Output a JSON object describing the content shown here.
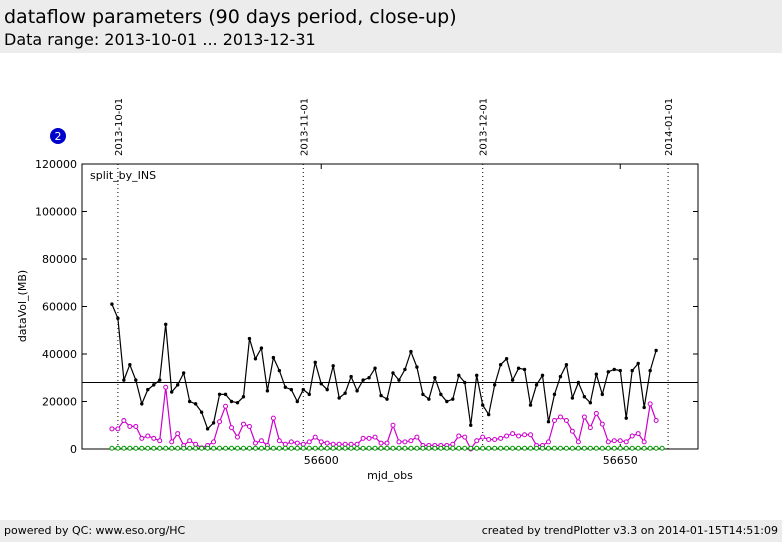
{
  "header": {
    "title": "dataflow parameters (90 days period, close-up)",
    "subtitle": "Data range: 2013-10-01 ... 2013-12-31"
  },
  "footer": {
    "left": "powered by QC: www.eso.org/HC",
    "right": "created by trendPlotter v3.3 on 2014-01-15T14:51:09"
  },
  "badge": {
    "label": "2",
    "color": "#0000cc"
  },
  "chart_data": {
    "type": "line",
    "annotation": "split_by_INS",
    "xlabel": "mjd_obs",
    "ylabel": "dataVol_(MB)",
    "xlim": [
      56560,
      56663
    ],
    "ylim": [
      0,
      120000
    ],
    "xticks": [
      56600,
      56650
    ],
    "yticks": [
      0,
      20000,
      40000,
      60000,
      80000,
      100000,
      120000
    ],
    "date_markers": [
      {
        "label": "2013-10-01",
        "mjd": 56566
      },
      {
        "label": "2013-11-01",
        "mjd": 56597
      },
      {
        "label": "2013-12-01",
        "mjd": 56627
      },
      {
        "label": "2014-01-01",
        "mjd": 56658
      }
    ],
    "reference_line": {
      "y": 28000,
      "color": "#000000"
    },
    "series": [
      {
        "color": "#000000",
        "marker": "dot",
        "x": [
          56565,
          56566,
          56567,
          56568,
          56569,
          56570,
          56571,
          56572,
          56573,
          56574,
          56575,
          56576,
          56577,
          56578,
          56579,
          56580,
          56581,
          56582,
          56583,
          56584,
          56585,
          56586,
          56587,
          56588,
          56589,
          56590,
          56591,
          56592,
          56593,
          56594,
          56595,
          56596,
          56597,
          56598,
          56599,
          56600,
          56601,
          56602,
          56603,
          56604,
          56605,
          56606,
          56607,
          56608,
          56609,
          56610,
          56611,
          56612,
          56613,
          56614,
          56615,
          56616,
          56617,
          56618,
          56619,
          56620,
          56621,
          56622,
          56623,
          56624,
          56625,
          56626,
          56627,
          56628,
          56629,
          56630,
          56631,
          56632,
          56633,
          56634,
          56635,
          56636,
          56637,
          56638,
          56639,
          56640,
          56641,
          56642,
          56643,
          56644,
          56645,
          56646,
          56647,
          56648,
          56649,
          56650,
          56651,
          56652,
          56653,
          56654,
          56655,
          56656,
          56657
        ],
        "values": [
          61000,
          55000,
          29000,
          35500,
          29000,
          19000,
          25000,
          27000,
          29000,
          52500,
          24000,
          27000,
          32000,
          20000,
          19000,
          15500,
          8500,
          11000,
          23000,
          23000,
          20000,
          19500,
          22000,
          46500,
          38000,
          42500,
          24500,
          38500,
          33000,
          26000,
          25000,
          20000,
          25000,
          23000,
          36500,
          27500,
          25000,
          35000,
          21500,
          23500,
          30500,
          24500,
          29000,
          30000,
          34000,
          22500,
          21000,
          32000,
          29000,
          33500,
          41000,
          34500,
          23000,
          21000,
          30000,
          23000,
          20000,
          21000,
          31000,
          28000,
          10000,
          31000,
          18500,
          14500,
          27000,
          35500,
          38000,
          29000,
          34000,
          33500,
          18500,
          27000,
          31000,
          11500,
          23000,
          30500,
          35500,
          21500,
          28000,
          22000,
          19500,
          31500,
          23000,
          32500,
          33500,
          33000,
          13000,
          33000,
          36000,
          17500,
          33000,
          41500,
          null
        ]
      },
      {
        "color": "#cc00cc",
        "marker": "open-circle",
        "x": [
          56565,
          56566,
          56567,
          56568,
          56569,
          56570,
          56571,
          56572,
          56573,
          56574,
          56575,
          56576,
          56577,
          56578,
          56579,
          56580,
          56581,
          56582,
          56583,
          56584,
          56585,
          56586,
          56587,
          56588,
          56589,
          56590,
          56591,
          56592,
          56593,
          56594,
          56595,
          56596,
          56597,
          56598,
          56599,
          56600,
          56601,
          56602,
          56603,
          56604,
          56605,
          56606,
          56607,
          56608,
          56609,
          56610,
          56611,
          56612,
          56613,
          56614,
          56615,
          56616,
          56617,
          56618,
          56619,
          56620,
          56621,
          56622,
          56623,
          56624,
          56625,
          56626,
          56627,
          56628,
          56629,
          56630,
          56631,
          56632,
          56633,
          56634,
          56635,
          56636,
          56637,
          56638,
          56639,
          56640,
          56641,
          56642,
          56643,
          56644,
          56645,
          56646,
          56647,
          56648,
          56649,
          56650,
          56651,
          56652,
          56653,
          56654,
          56655,
          56656,
          56657
        ],
        "values": [
          8500,
          8500,
          12000,
          9500,
          9500,
          4500,
          5500,
          4500,
          3500,
          26000,
          3000,
          6500,
          1500,
          3500,
          2000,
          500,
          1500,
          3000,
          11500,
          18000,
          9000,
          5000,
          10500,
          9500,
          2500,
          3500,
          1500,
          13000,
          3500,
          2000,
          3000,
          2500,
          2000,
          3000,
          5000,
          3000,
          2500,
          2000,
          2000,
          2000,
          2000,
          2000,
          4500,
          4500,
          5000,
          2500,
          2500,
          10000,
          3000,
          3000,
          3500,
          5000,
          1500,
          1500,
          1500,
          1500,
          1500,
          2000,
          5500,
          5000,
          0,
          3500,
          5000,
          4000,
          4000,
          4500,
          5500,
          6500,
          5500,
          6000,
          6000,
          1500,
          1500,
          3000,
          12000,
          13500,
          12000,
          7500,
          3000,
          13500,
          9000,
          15000,
          10500,
          3000,
          3500,
          3500,
          3000,
          5500,
          6500,
          3000,
          19000,
          12000,
          null
        ]
      },
      {
        "color": "#009900",
        "marker": "open-circle",
        "x": [
          56565,
          56566,
          56567,
          56568,
          56569,
          56570,
          56571,
          56572,
          56573,
          56574,
          56575,
          56576,
          56577,
          56578,
          56579,
          56580,
          56581,
          56582,
          56583,
          56584,
          56585,
          56586,
          56587,
          56588,
          56589,
          56590,
          56591,
          56592,
          56593,
          56594,
          56595,
          56596,
          56597,
          56598,
          56599,
          56600,
          56601,
          56602,
          56603,
          56604,
          56605,
          56606,
          56607,
          56608,
          56609,
          56610,
          56611,
          56612,
          56613,
          56614,
          56615,
          56616,
          56617,
          56618,
          56619,
          56620,
          56621,
          56622,
          56623,
          56624,
          56625,
          56626,
          56627,
          56628,
          56629,
          56630,
          56631,
          56632,
          56633,
          56634,
          56635,
          56636,
          56637,
          56638,
          56639,
          56640,
          56641,
          56642,
          56643,
          56644,
          56645,
          56646,
          56647,
          56648,
          56649,
          56650,
          56651,
          56652,
          56653,
          56654,
          56655,
          56656,
          56657
        ],
        "values": [
          300,
          300,
          300,
          300,
          300,
          300,
          300,
          300,
          300,
          300,
          300,
          300,
          300,
          300,
          300,
          300,
          300,
          300,
          300,
          300,
          300,
          300,
          300,
          300,
          300,
          300,
          300,
          300,
          300,
          300,
          300,
          300,
          300,
          300,
          300,
          300,
          300,
          300,
          300,
          300,
          300,
          300,
          300,
          300,
          300,
          300,
          300,
          300,
          300,
          300,
          300,
          300,
          300,
          300,
          300,
          300,
          300,
          300,
          300,
          300,
          300,
          300,
          300,
          300,
          300,
          300,
          300,
          300,
          300,
          300,
          300,
          300,
          300,
          300,
          300,
          300,
          300,
          300,
          300,
          300,
          300,
          300,
          300,
          300,
          300,
          300,
          300,
          300,
          300,
          300,
          300,
          300,
          300
        ]
      }
    ]
  }
}
